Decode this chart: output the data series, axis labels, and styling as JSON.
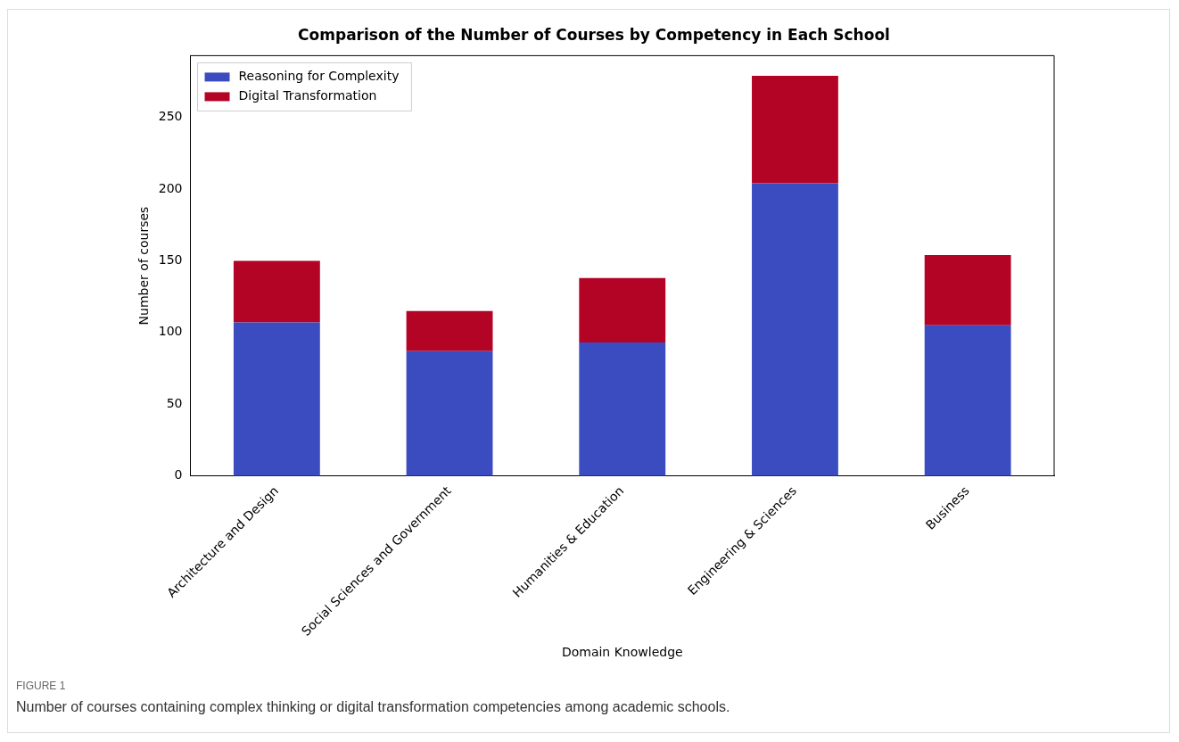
{
  "chart_data": {
    "type": "bar",
    "title": "Comparison of the Number of Courses by Competency in Each School",
    "xlabel": "Domain Knowledge",
    "ylabel": "Number of courses",
    "categories": [
      "Architecture and Design",
      "Social Sciences and Government",
      "Humanities & Education",
      "Engineering & Sciences",
      "Business"
    ],
    "series": [
      {
        "name": "Reasoning for Complexity",
        "color": "#3b4cc0",
        "values": [
          107,
          87,
          93,
          204,
          105
        ]
      },
      {
        "name": "Digital Transformation",
        "color": "#b40426",
        "values": [
          43,
          28,
          45,
          75,
          49
        ]
      }
    ],
    "stacked": true,
    "ylim": [
      0,
      293
    ],
    "yticks": [
      0,
      50,
      100,
      150,
      200,
      250
    ],
    "grid": false,
    "legend": "top left",
    "annotations": [
      "FIGURE 1",
      "Number of courses containing complex thinking or digital transformation competencies among academic schools."
    ]
  }
}
